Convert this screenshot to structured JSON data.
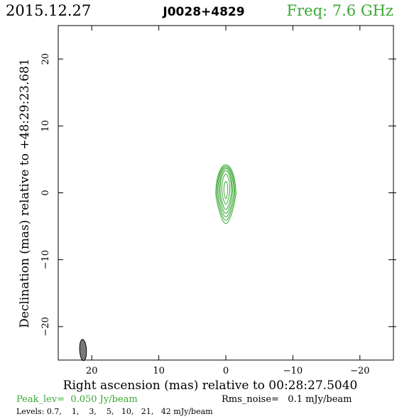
{
  "header": {
    "date": "2015.12.27",
    "source": "J0028+4829",
    "freq": "Freq: 7.6 GHz"
  },
  "colors": {
    "contour": "#3aa832",
    "freq": "#3aa832",
    "peak": "#3aa832",
    "beam": "#7a7a7a",
    "axis": "#000000"
  },
  "chart_data": {
    "type": "contour",
    "xlabel": "Right ascension (mas) relative to 00:28:27.5040",
    "ylabel": "Declination (mas) relative to +48:29:23.681",
    "xlim": [
      25,
      -25
    ],
    "ylim": [
      -25,
      25
    ],
    "xticks": [
      20,
      10,
      0,
      -10,
      -20
    ],
    "xtick_labels": [
      "20",
      "10",
      "0",
      "−10",
      "−20"
    ],
    "yticks": [
      20,
      10,
      0,
      -10,
      -20
    ],
    "ytick_labels": [
      "20",
      "10",
      "0",
      "−10",
      "−20"
    ],
    "peak_text": "Peak_lev=  0.050 Jy/beam",
    "rms_text": "Rms_noise=   0.1 mJy/beam",
    "levels_text": "Levels: 0.7,    1,    3,    5,   10,   21,   42 mJy/beam",
    "levels_mJy": [
      0.7,
      1,
      3,
      5,
      10,
      21,
      42
    ],
    "peak_Jy_per_beam": 0.05,
    "rms_mJy_per_beam": 0.1,
    "source_center_mas": [
      0.0,
      0.0
    ],
    "contours": [
      {
        "level": 0.7,
        "center": [
          0.0,
          -0.2
        ],
        "rx": 1.5,
        "ry_up": 4.4,
        "ry_down": 4.4
      },
      {
        "level": 1,
        "center": [
          0.0,
          -0.1
        ],
        "rx": 1.35,
        "ry_up": 4.1,
        "ry_down": 4.0
      },
      {
        "level": 3,
        "center": [
          0.0,
          0.0
        ],
        "rx": 1.2,
        "ry_up": 3.8,
        "ry_down": 3.6
      },
      {
        "level": 5,
        "center": [
          0.0,
          0.1
        ],
        "rx": 1.0,
        "ry_up": 3.5,
        "ry_down": 3.2
      },
      {
        "level": 10,
        "center": [
          0.0,
          0.2
        ],
        "rx": 0.85,
        "ry_up": 3.1,
        "ry_down": 2.7
      },
      {
        "level": 21,
        "center": [
          0.0,
          0.3
        ],
        "rx": 0.6,
        "ry_up": 2.5,
        "ry_down": 2.0
      },
      {
        "level": 42,
        "center": [
          0.0,
          0.3
        ],
        "rx": 0.3,
        "ry_up": 1.4,
        "ry_down": 1.2
      }
    ],
    "beam": {
      "center": [
        21.3,
        -23.5
      ],
      "major": 3.2,
      "minor": 1.0,
      "pa_deg": 3
    }
  }
}
